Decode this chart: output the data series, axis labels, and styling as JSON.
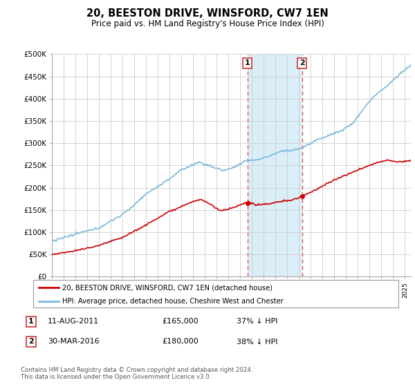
{
  "title": "20, BEESTON DRIVE, WINSFORD, CW7 1EN",
  "subtitle": "Price paid vs. HM Land Registry's House Price Index (HPI)",
  "ylim": [
    0,
    500000
  ],
  "xlim_start": 1995.0,
  "xlim_end": 2025.5,
  "hpi_color": "#7ab8d9",
  "price_color": "#cc0000",
  "vline_color": "#e05555",
  "highlight_color": "#daeef8",
  "transaction1_x": 2011.61,
  "transaction2_x": 2016.25,
  "transaction1_y": 165000,
  "transaction2_y": 180000,
  "legend_label_red": "20, BEESTON DRIVE, WINSFORD, CW7 1EN (detached house)",
  "legend_label_blue": "HPI: Average price, detached house, Cheshire West and Chester",
  "table_row1": [
    "1",
    "11-AUG-2011",
    "£165,000",
    "37% ↓ HPI"
  ],
  "table_row2": [
    "2",
    "30-MAR-2016",
    "£180,000",
    "38% ↓ HPI"
  ],
  "footnote": "Contains HM Land Registry data © Crown copyright and database right 2024.\nThis data is licensed under the Open Government Licence v3.0.",
  "background_color": "#ffffff",
  "grid_color": "#cccccc"
}
